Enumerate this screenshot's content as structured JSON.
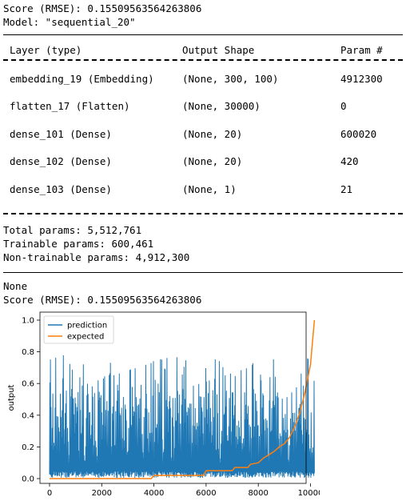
{
  "header": {
    "score_line": "Score (RMSE): 0.15509563564263806",
    "model_line": "Model: \"sequential_20\""
  },
  "summary": {
    "columns": [
      "Layer (type)",
      "Output Shape",
      "Param #"
    ],
    "rows": [
      [
        "embedding_19 (Embedding)",
        "(None, 300, 100)",
        "4912300"
      ],
      [
        "flatten_17 (Flatten)",
        "(None, 30000)",
        "0"
      ],
      [
        "dense_101 (Dense)",
        "(None, 20)",
        "600020"
      ],
      [
        "dense_102 (Dense)",
        "(None, 20)",
        "420"
      ],
      [
        "dense_103 (Dense)",
        "(None, 1)",
        "21"
      ]
    ],
    "total": "Total params: 5,512,761",
    "trainable": "Trainable params: 600,461",
    "non_trainable": "Non-trainable params: 4,912,300"
  },
  "footer": {
    "none_line": "None",
    "score_line": "Score (RMSE): 0.15509563564263806"
  },
  "chart_data": {
    "type": "line",
    "ylabel": "output",
    "xlabel": "",
    "xlim": [
      0,
      10200
    ],
    "ylim": [
      0,
      1.0
    ],
    "xticks": [
      "0",
      "2000",
      "4000",
      "6000",
      "8000",
      "10000"
    ],
    "yticks": [
      "0.0",
      "0.2",
      "0.4",
      "0.6",
      "0.8",
      "1.0"
    ],
    "legend_position": "top-left",
    "series": [
      {
        "name": "prediction",
        "color": "#1f77b4",
        "x": [
          0,
          500,
          1000,
          1500,
          2000,
          2500,
          3000,
          3500,
          4000,
          4500,
          5000,
          5500,
          6000,
          6500,
          7000,
          7500,
          8000,
          8500,
          9000,
          9500,
          10000,
          10150
        ],
        "y": [
          0.01,
          0.5,
          0.02,
          0.55,
          0.01,
          0.6,
          0.02,
          0.45,
          0.01,
          0.78,
          0.02,
          0.6,
          0.01,
          0.73,
          0.02,
          0.52,
          0.01,
          0.75,
          0.02,
          0.6,
          0.78,
          0.02
        ]
      },
      {
        "name": "expected",
        "color": "#ff7f0e",
        "x": [
          0,
          3900,
          4000,
          5900,
          6000,
          7000,
          7100,
          7600,
          7700,
          8000,
          8200,
          8400,
          8600,
          8800,
          9000,
          9200,
          9400,
          9600,
          9800,
          10000,
          10150
        ],
        "y": [
          0.0,
          0.0,
          0.02,
          0.02,
          0.05,
          0.05,
          0.07,
          0.07,
          0.09,
          0.1,
          0.13,
          0.15,
          0.17,
          0.2,
          0.22,
          0.26,
          0.33,
          0.42,
          0.55,
          0.72,
          1.0
        ]
      }
    ]
  }
}
